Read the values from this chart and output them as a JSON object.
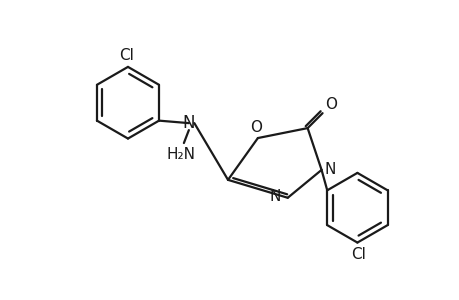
{
  "background_color": "#ffffff",
  "line_color": "#1a1a1a",
  "line_width": 1.6,
  "font_size": 11,
  "figsize": [
    4.6,
    3.0
  ],
  "dpi": 100,
  "xlim": [
    0,
    9.2
  ],
  "ylim": [
    0,
    6
  ]
}
